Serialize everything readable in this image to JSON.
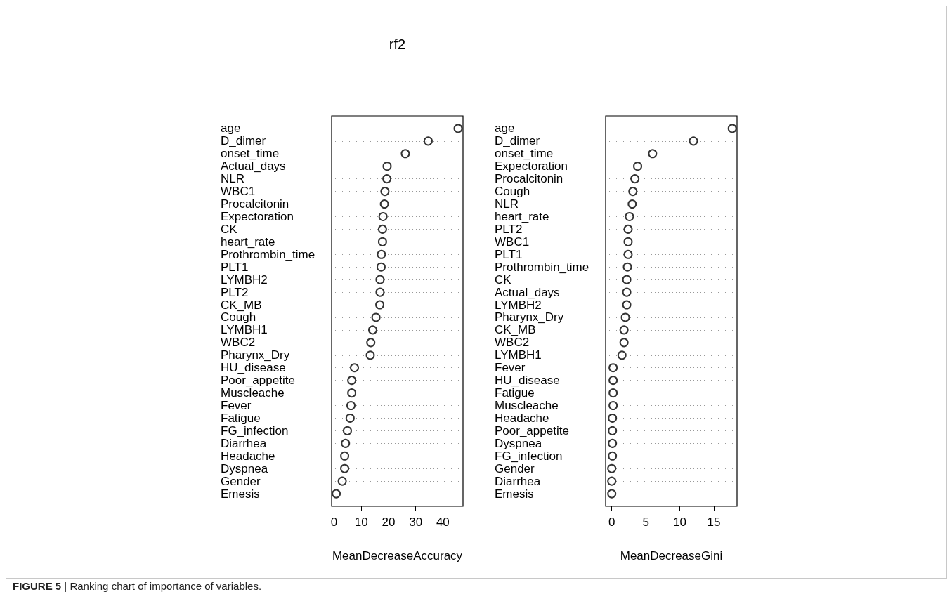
{
  "chart_data": [
    {
      "type": "scatter",
      "title": "rf2",
      "annotations": [
        "FIGURE 5 | Ranking chart of importance of variables."
      ],
      "orientation": "horizontal",
      "xlabel": "MeanDecreaseAccuracy",
      "categories": [
        "age",
        "D_dimer",
        "onset_time",
        "Actual_days",
        "NLR",
        "WBC1",
        "Procalcitonin",
        "Expectoration",
        "CK",
        "heart_rate",
        "Prothrombin_time",
        "PLT1",
        "LYMBH2",
        "PLT2",
        "CK_MB",
        "Cough",
        "LYMBH1",
        "WBC2",
        "Pharynx_Dry",
        "HU_disease",
        "Poor_appetite",
        "Muscleache",
        "Fever",
        "Fatigue",
        "FG_infection",
        "Diarrhea",
        "Headache",
        "Dyspnea",
        "Gender",
        "Emesis"
      ],
      "values": [
        45.6,
        34.6,
        26.2,
        19.5,
        19.4,
        18.7,
        18.5,
        18.0,
        17.8,
        17.8,
        17.4,
        17.3,
        16.9,
        16.9,
        16.8,
        15.4,
        14.2,
        13.5,
        13.3,
        7.5,
        6.5,
        6.5,
        6.2,
        5.9,
        4.9,
        4.2,
        3.9,
        3.9,
        3.0,
        0.8
      ],
      "color": "#000000",
      "marker": "circle",
      "grid": "y",
      "xlim": [
        -0.9,
        47.4
      ],
      "xticks": [
        0,
        10,
        20,
        30,
        40
      ]
    },
    {
      "type": "scatter",
      "orientation": "horizontal",
      "xlabel": "MeanDecreaseGini",
      "categories": [
        "age",
        "D_dimer",
        "onset_time",
        "Expectoration",
        "Procalcitonin",
        "Cough",
        "NLR",
        "heart_rate",
        "PLT2",
        "WBC1",
        "PLT1",
        "Prothrombin_time",
        "CK",
        "Actual_days",
        "LYMBH2",
        "Pharynx_Dry",
        "CK_MB",
        "WBC2",
        "LYMBH1",
        "Fever",
        "HU_disease",
        "Fatigue",
        "Muscleache",
        "Headache",
        "Poor_appetite",
        "Dyspnea",
        "FG_infection",
        "Gender",
        "Diarrhea",
        "Emesis"
      ],
      "values": [
        17.7,
        12.0,
        6.0,
        3.8,
        3.4,
        3.1,
        3.0,
        2.6,
        2.4,
        2.4,
        2.4,
        2.3,
        2.2,
        2.2,
        2.2,
        2.0,
        1.8,
        1.8,
        1.5,
        0.2,
        0.2,
        0.2,
        0.2,
        0.1,
        0.1,
        0.1,
        0.1,
        0.0,
        0.0,
        0.0
      ],
      "color": "#000000",
      "marker": "circle",
      "grid": "y",
      "xlim": [
        -0.9,
        18.4
      ],
      "xticks": [
        0,
        5,
        10,
        15
      ]
    }
  ]
}
